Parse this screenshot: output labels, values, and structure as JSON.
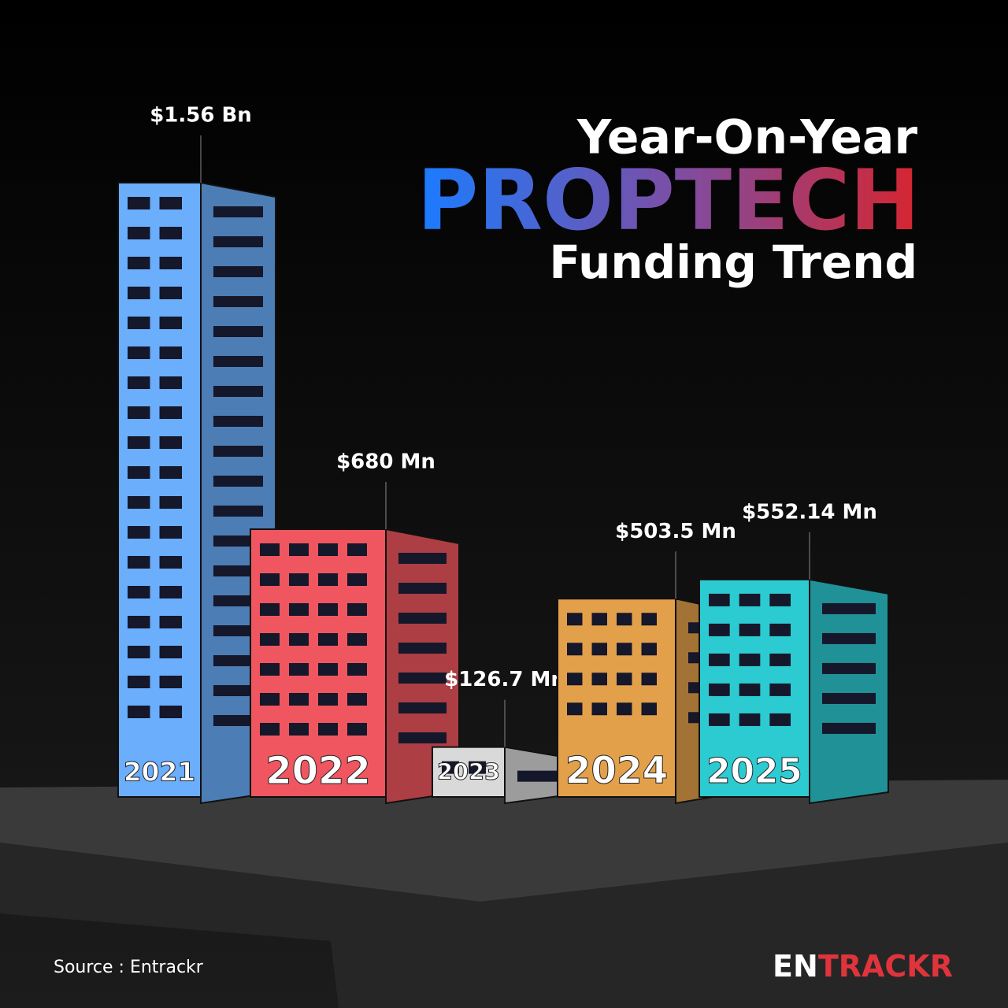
{
  "chart_data": {
    "type": "bar",
    "title": [
      "Year-On-Year",
      "PROPTECH",
      "Funding Trend"
    ],
    "categories": [
      "2021",
      "2022",
      "2023",
      "2024",
      "2025"
    ],
    "values": [
      1560,
      680,
      126.7,
      503.5,
      552.14
    ],
    "value_labels": [
      "$1.56 Bn",
      "$680 Mn",
      "$126.7 Mn",
      "$503.5 Mn",
      "$552.14 Mn"
    ],
    "colors": [
      "#6aaefc",
      "#f0565f",
      "#d9d9d9",
      "#e3a04a",
      "#2ccbd2"
    ],
    "ylim": [
      0,
      1560
    ],
    "source": "Source : Entrackr",
    "logo": [
      "EN",
      "TRACKR"
    ]
  }
}
